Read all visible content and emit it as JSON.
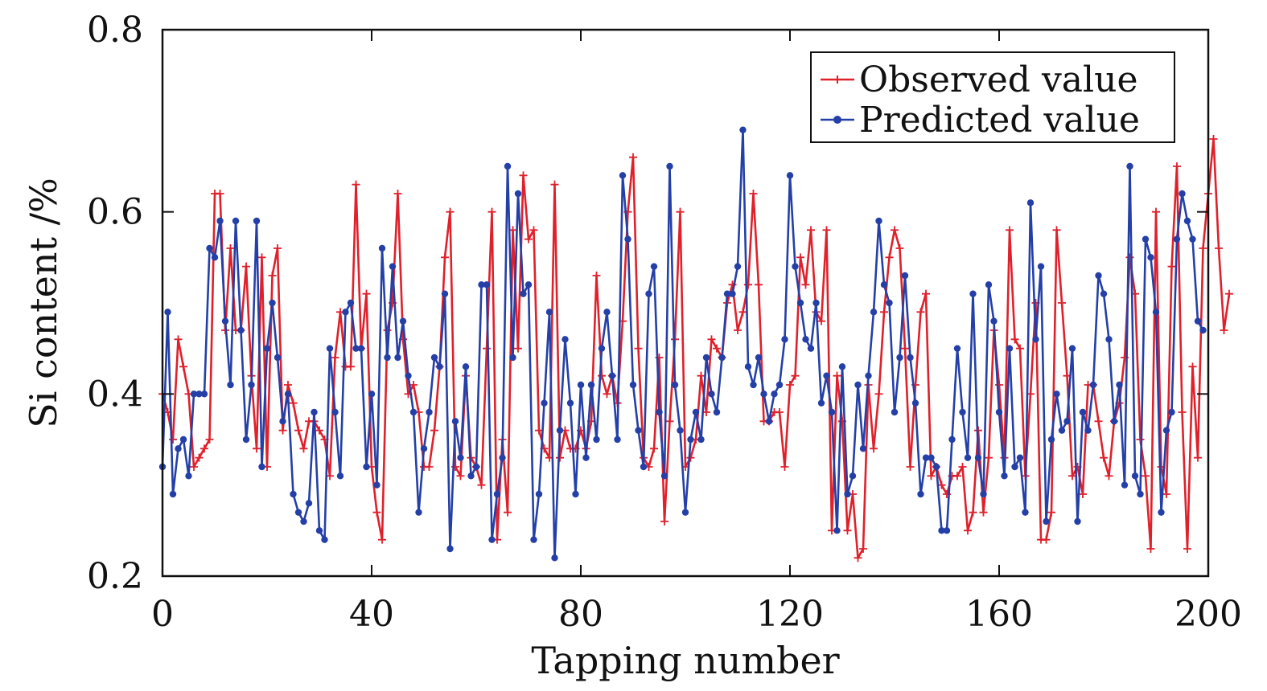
{
  "chart_data": {
    "type": "line",
    "xlabel": "Tapping number",
    "ylabel": "Si content /%",
    "xlim": [
      0,
      200
    ],
    "ylim": [
      0.2,
      0.8
    ],
    "xticks": [
      0,
      40,
      80,
      120,
      160,
      200
    ],
    "yticks": [
      0.2,
      0.4,
      0.6,
      0.8
    ],
    "xtick_labels": [
      "0",
      "40",
      "80",
      "120",
      "160",
      "200"
    ],
    "ytick_labels": [
      "0.2",
      "0.4",
      "0.6",
      "0.8"
    ],
    "legend_position": "top-right",
    "grid": false,
    "series": [
      {
        "name": "Observed value",
        "color": "#e0202a",
        "marker": "plus",
        "values": [
          0.4,
          0.38,
          0.35,
          0.46,
          0.43,
          0.4,
          0.32,
          0.33,
          0.34,
          0.35,
          0.62,
          0.62,
          0.47,
          0.56,
          0.47,
          0.47,
          0.54,
          0.42,
          0.34,
          0.55,
          0.32,
          0.53,
          0.56,
          0.36,
          0.41,
          0.39,
          0.36,
          0.34,
          0.37,
          0.37,
          0.36,
          0.35,
          0.31,
          0.44,
          0.49,
          0.43,
          0.43,
          0.63,
          0.45,
          0.51,
          0.32,
          0.27,
          0.24,
          0.47,
          0.5,
          0.62,
          0.46,
          0.4,
          0.41,
          0.38,
          0.32,
          0.32,
          0.36,
          0.43,
          0.55,
          0.6,
          0.32,
          0.31,
          0.42,
          0.33,
          0.32,
          0.3,
          0.45,
          0.6,
          0.24,
          0.35,
          0.27,
          0.58,
          0.45,
          0.64,
          0.57,
          0.58,
          0.36,
          0.34,
          0.33,
          0.63,
          0.33,
          0.36,
          0.34,
          0.34,
          0.36,
          0.34,
          0.37,
          0.53,
          0.42,
          0.4,
          0.42,
          0.39,
          0.48,
          0.6,
          0.66,
          0.45,
          0.33,
          0.32,
          0.34,
          0.44,
          0.26,
          0.37,
          0.46,
          0.6,
          0.32,
          0.33,
          0.35,
          0.42,
          0.38,
          0.46,
          0.45,
          0.44,
          0.5,
          0.52,
          0.47,
          0.49,
          0.52,
          0.62,
          0.52,
          0.37,
          0.37,
          0.38,
          0.38,
          0.32,
          0.41,
          0.42,
          0.55,
          0.52,
          0.58,
          0.49,
          0.48,
          0.58,
          0.25,
          0.42,
          0.37,
          0.25,
          0.29,
          0.22,
          0.23,
          0.41,
          0.34,
          0.4,
          0.49,
          0.55,
          0.58,
          0.56,
          0.45,
          0.32,
          0.41,
          0.49,
          0.51,
          0.31,
          0.32,
          0.3,
          0.29,
          0.31,
          0.31,
          0.32,
          0.25,
          0.27,
          0.36,
          0.27,
          0.33,
          0.47,
          0.41,
          0.33,
          0.58,
          0.46,
          0.45,
          0.31,
          0.4,
          0.5,
          0.24,
          0.24,
          0.27,
          0.58,
          0.5,
          0.42,
          0.31,
          0.32,
          0.29,
          0.41,
          0.41,
          0.37,
          0.33,
          0.31,
          0.37,
          0.39,
          0.44,
          0.55,
          0.51,
          0.35,
          0.31,
          0.23,
          0.6,
          0.32,
          0.29,
          0.54,
          0.65,
          0.38,
          0.23,
          0.43,
          0.33,
          0.56,
          0.62,
          0.68,
          0.56,
          0.47,
          0.51
        ]
      },
      {
        "name": "Predicted value",
        "color": "#2440a8",
        "marker": "dot",
        "values": [
          0.32,
          0.49,
          0.29,
          0.34,
          0.35,
          0.31,
          0.4,
          0.4,
          0.4,
          0.56,
          0.55,
          0.59,
          0.48,
          0.41,
          0.59,
          0.47,
          0.35,
          0.41,
          0.59,
          0.32,
          0.45,
          0.5,
          0.44,
          0.37,
          0.4,
          0.29,
          0.27,
          0.26,
          0.28,
          0.38,
          0.25,
          0.24,
          0.45,
          0.38,
          0.31,
          0.49,
          0.5,
          0.45,
          0.45,
          0.32,
          0.4,
          0.3,
          0.56,
          0.44,
          0.54,
          0.44,
          0.48,
          0.42,
          0.38,
          0.27,
          0.34,
          0.38,
          0.44,
          0.43,
          0.51,
          0.23,
          0.37,
          0.33,
          0.43,
          0.31,
          0.32,
          0.52,
          0.52,
          0.24,
          0.29,
          0.33,
          0.65,
          0.44,
          0.62,
          0.51,
          0.52,
          0.24,
          0.29,
          0.39,
          0.49,
          0.22,
          0.36,
          0.46,
          0.39,
          0.29,
          0.41,
          0.33,
          0.41,
          0.35,
          0.45,
          0.49,
          0.42,
          0.35,
          0.64,
          0.57,
          0.41,
          0.36,
          0.32,
          0.51,
          0.54,
          0.38,
          0.31,
          0.65,
          0.41,
          0.36,
          0.27,
          0.35,
          0.38,
          0.35,
          0.44,
          0.4,
          0.38,
          0.44,
          0.51,
          0.51,
          0.54,
          0.69,
          0.43,
          0.41,
          0.44,
          0.4,
          0.37,
          0.4,
          0.41,
          0.46,
          0.64,
          0.54,
          0.5,
          0.46,
          0.45,
          0.5,
          0.39,
          0.42,
          0.38,
          0.25,
          0.43,
          0.29,
          0.31,
          0.41,
          0.34,
          0.42,
          0.49,
          0.59,
          0.52,
          0.5,
          0.38,
          0.44,
          0.53,
          0.44,
          0.39,
          0.29,
          0.33,
          0.33,
          0.32,
          0.25,
          0.25,
          0.35,
          0.45,
          0.38,
          0.33,
          0.51,
          0.33,
          0.29,
          0.52,
          0.48,
          0.38,
          0.31,
          0.45,
          0.32,
          0.33,
          0.27,
          0.61,
          0.46,
          0.54,
          0.26,
          0.35,
          0.4,
          0.36,
          0.37,
          0.45,
          0.26,
          0.38,
          0.36,
          0.41,
          0.53,
          0.51,
          0.46,
          0.37,
          0.41,
          0.3,
          0.65,
          0.31,
          0.29,
          0.57,
          0.55,
          0.49,
          0.27,
          0.36,
          0.38,
          0.57,
          0.62,
          0.59,
          0.57,
          0.48,
          0.47
        ]
      }
    ]
  }
}
